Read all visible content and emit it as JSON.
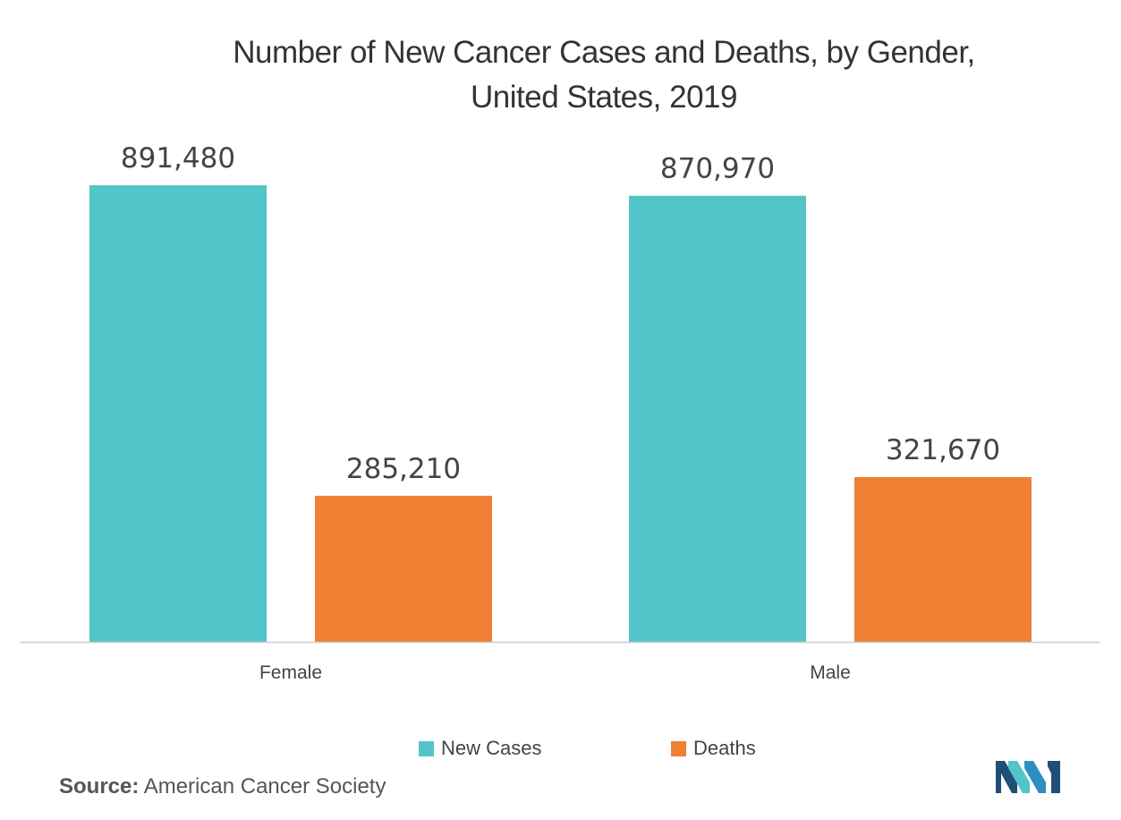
{
  "colors": {
    "new_cases": "#52C4CA",
    "deaths": "#EE7F33",
    "axis": "#cccccc",
    "text": "#444444"
  },
  "title_line1": "Number of New Cancer Cases and Deaths, by Gender,",
  "title_line2": "United States, 2019",
  "chart_data": {
    "type": "bar",
    "title": "Number of New Cancer Cases and Deaths, by Gender, United States, 2019",
    "categories": [
      "Female",
      "Male"
    ],
    "series": [
      {
        "name": "New Cases",
        "values": [
          891480,
          870970
        ],
        "labels": [
          "891,480",
          "870,970"
        ]
      },
      {
        "name": "Deaths",
        "values": [
          285210,
          321670
        ],
        "labels": [
          "285,210",
          "321,670"
        ]
      }
    ],
    "xlabel": "",
    "ylabel": "",
    "ylim": [
      0,
      891480
    ],
    "grid": false,
    "legend": "bottom-center"
  },
  "legend": {
    "new_cases_label": "New Cases",
    "deaths_label": "Deaths"
  },
  "source": {
    "label": "Source:",
    "text": "American Cancer Society"
  }
}
